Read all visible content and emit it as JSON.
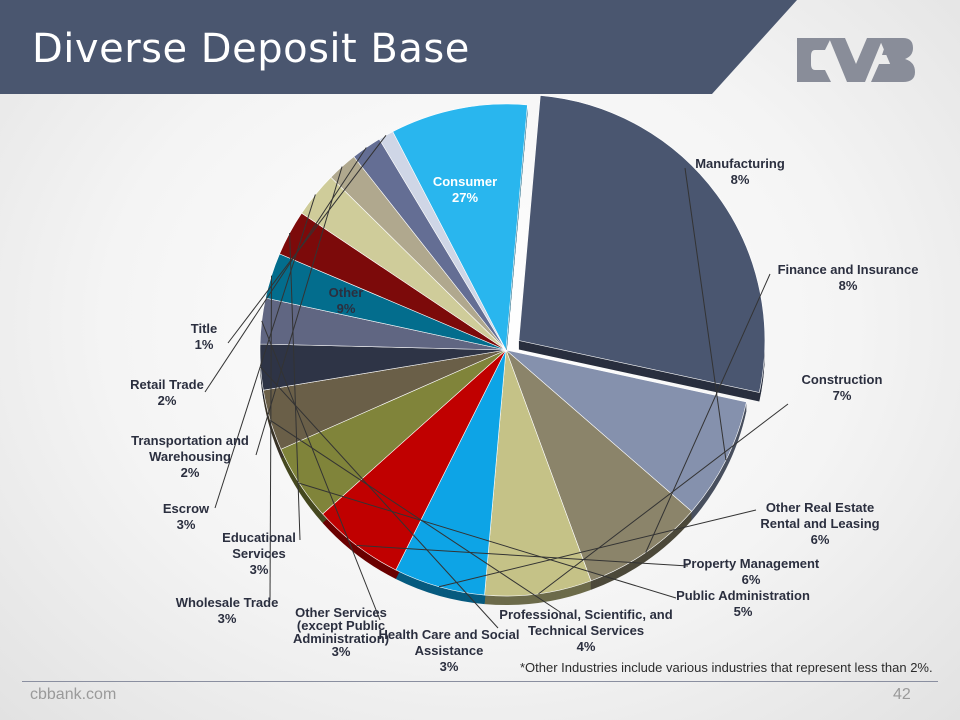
{
  "slide": {
    "title": "Diverse Deposit Base",
    "footnote": "*Other Industries include various industries that represent less than 2%.",
    "footer_site": "cbbank.com",
    "page_number": "42"
  },
  "colors": {
    "title_band": "#4a566f",
    "logo": "#898d99"
  },
  "chart_data": {
    "type": "pie",
    "title": "",
    "legend": "none",
    "slices": [
      {
        "name": "Consumer",
        "value": 27,
        "label": "27%",
        "color": "#4a5670"
      },
      {
        "name": "Manufacturing",
        "value": 8,
        "label": "8%",
        "color": "#8591ad"
      },
      {
        "name": "Finance and Insurance",
        "value": 8,
        "label": "8%",
        "color": "#8b846a"
      },
      {
        "name": "Construction",
        "value": 7,
        "label": "7%",
        "color": "#c5c287"
      },
      {
        "name": "Other Real Estate Rental and Leasing",
        "value": 6,
        "label": "6%",
        "color": "#0da4e6"
      },
      {
        "name": "Property Management",
        "value": 6,
        "label": "6%",
        "color": "#c00000"
      },
      {
        "name": "Public Administration",
        "value": 5,
        "label": "5%",
        "color": "#80843a"
      },
      {
        "name": "Professional, Scientific, and Technical Services",
        "value": 4,
        "label": "4%",
        "color": "#6a5f48"
      },
      {
        "name": "Health Care and Social Assistance",
        "value": 3,
        "label": "3%",
        "color": "#2e3446"
      },
      {
        "name": "Other Services (except Public Administration)",
        "value": 3,
        "label": "3%",
        "color": "#606682"
      },
      {
        "name": "Wholesale Trade",
        "value": 3,
        "label": "3%",
        "color": "#036d8d"
      },
      {
        "name": "Educational Services",
        "value": 3,
        "label": "3%",
        "color": "#7c0a0a"
      },
      {
        "name": "Escrow",
        "value": 3,
        "label": "3%",
        "color": "#cfcc9a"
      },
      {
        "name": "Transportation and Warehousing",
        "value": 2,
        "label": "2%",
        "color": "#b0a88e"
      },
      {
        "name": "Retail Trade",
        "value": 2,
        "label": "2%",
        "color": "#646e94"
      },
      {
        "name": "Title",
        "value": 1,
        "label": "1%",
        "color": "#cfd6e6"
      },
      {
        "name": "Other",
        "value": 9,
        "label": "9%",
        "color": "#29b6ee"
      }
    ]
  }
}
